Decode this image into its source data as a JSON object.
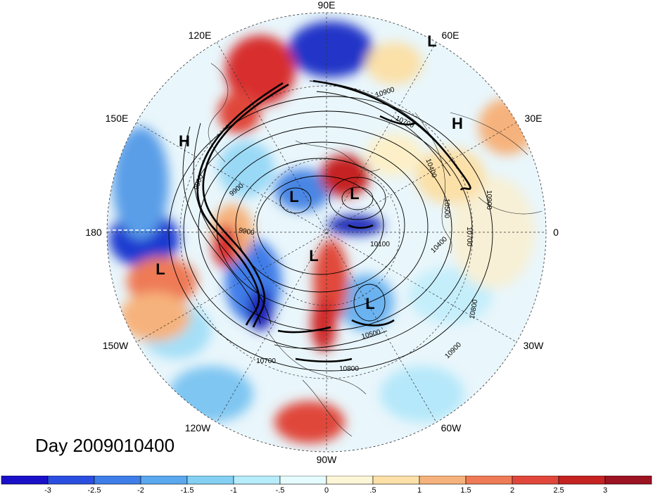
{
  "title": "Day 2009010400",
  "longitude_labels": {
    "deg90e": "90E",
    "deg60e": "60E",
    "deg120e": "120E",
    "deg150e": "150E",
    "deg30e": "30E",
    "deg180": "180",
    "deg0": "0",
    "deg150w": "150W",
    "deg30w": "30W",
    "deg120w": "120W",
    "deg60w": "60W",
    "deg90w": "90W"
  },
  "pressure_symbols": {
    "low_60e": "L",
    "high_30e": "H",
    "high_150e": "H",
    "low_pole_left": "L",
    "low_pole_right": "L",
    "low_pole_lower": "L",
    "low_pacific": "L",
    "low_atlantic": "L"
  },
  "contour_labels": {
    "c10900_top": "10900",
    "c10700_top": "10700",
    "c10400_right": "10400",
    "c10500_right": "10500",
    "c10900_right": "10900",
    "c10700_right": "10700",
    "c10400_right2": "10400",
    "c10100": "10100",
    "c9900_left": "9900",
    "c9900_center": "9900",
    "c10800_right": "10800",
    "c10900_lower": "10900",
    "c10500_lower": "10500",
    "c10800_lower": "10800",
    "c10700_lower": "10700"
  },
  "colorbar": {
    "ticks": [
      "-3",
      "-2.5",
      "-2",
      "-1.5",
      "-1",
      "-.5",
      "0",
      ".5",
      "1",
      "1.5",
      "2",
      "2.5",
      "3"
    ],
    "colors": [
      "#1a10c8",
      "#2a4fe0",
      "#3f7de8",
      "#5aa8ee",
      "#84d0f4",
      "#b7ecfb",
      "#e6fbfd",
      "#fdf6d6",
      "#fbe0a8",
      "#f6b27c",
      "#ee7a56",
      "#e0473a",
      "#c52222",
      "#9c1322"
    ]
  }
}
